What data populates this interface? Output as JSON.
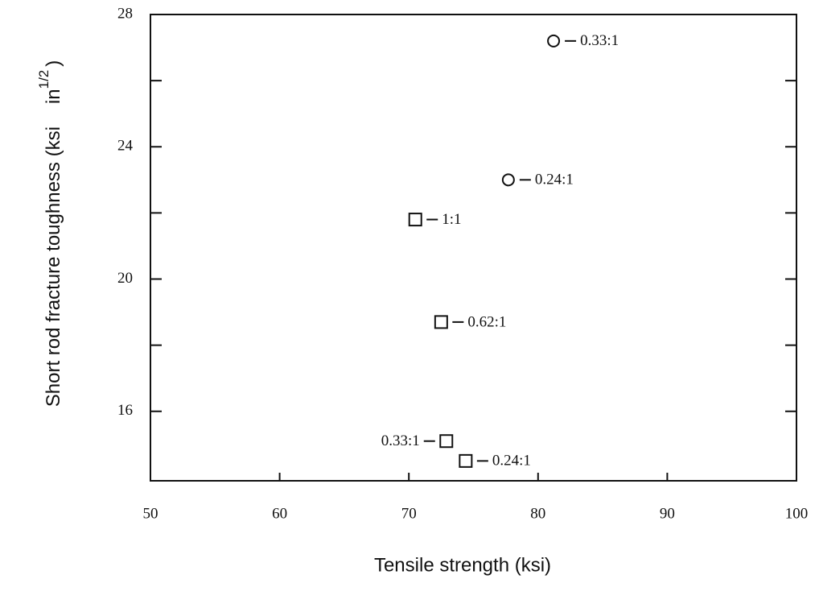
{
  "chart_data": {
    "type": "scatter",
    "xlabel": "Tensile strength (ksi)",
    "ylabel": [
      "Short rod fracture toughness (ksi",
      "in",
      "1/2",
      ")"
    ],
    "xlim": [
      50,
      100
    ],
    "xticks": [
      50,
      60,
      70,
      80,
      90,
      100
    ],
    "ylim": [
      13.9,
      28
    ],
    "yticks": [
      16,
      20,
      24,
      28
    ],
    "yminor": [
      18,
      22,
      26
    ],
    "color": "#111111",
    "series": [
      {
        "marker": "circle",
        "x": [
          81.2,
          77.7
        ],
        "values": [
          27.2,
          23.0
        ],
        "labels": [
          "0.33:1",
          "0.24:1"
        ],
        "label_side": [
          "right",
          "right"
        ]
      },
      {
        "marker": "square",
        "x": [
          70.5,
          72.5,
          72.9,
          74.4
        ],
        "values": [
          21.8,
          18.7,
          15.1,
          14.5
        ],
        "labels": [
          "1:1",
          "0.62:1",
          "0.33:1",
          "0.24:1"
        ],
        "label_side": [
          "right",
          "right",
          "left",
          "right"
        ]
      }
    ]
  }
}
